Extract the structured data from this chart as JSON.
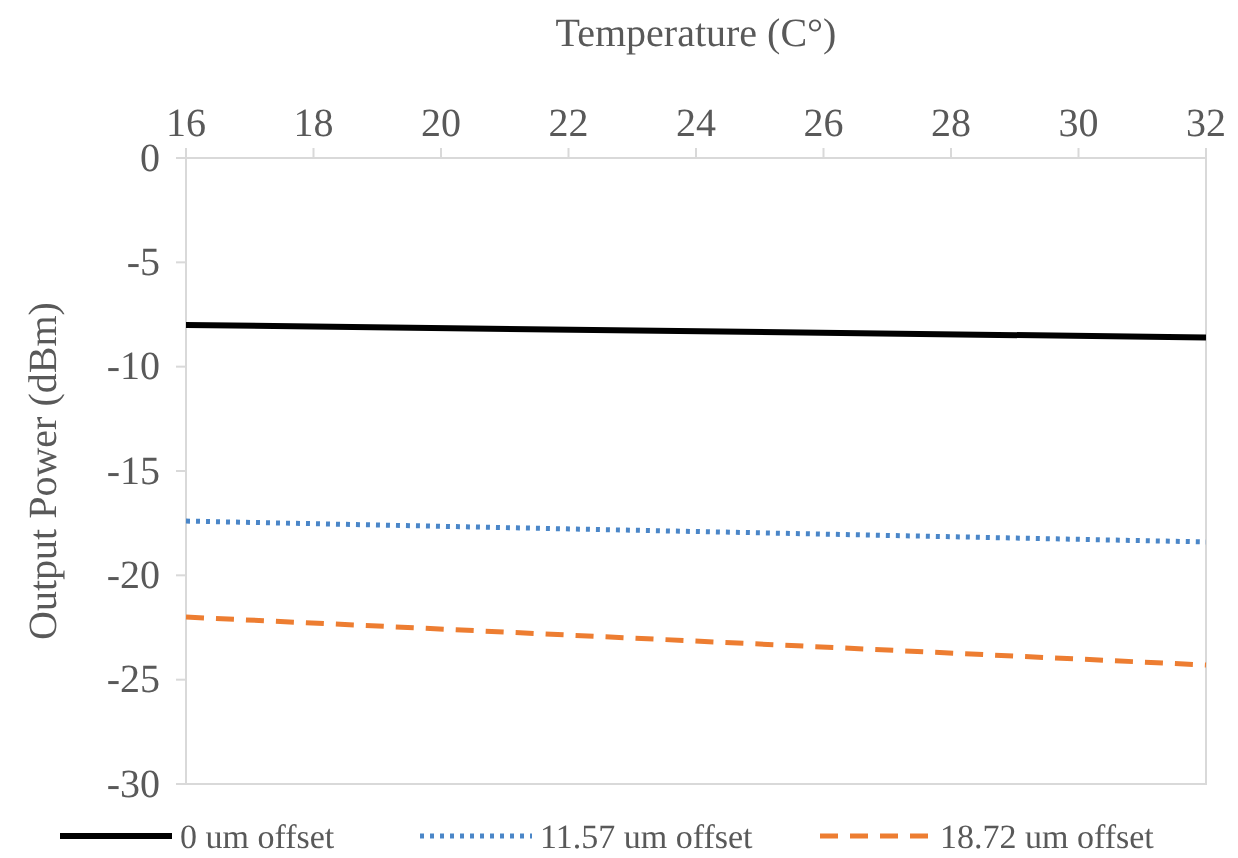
{
  "chart_data": {
    "type": "line",
    "xlabel": "Temperature (C°)",
    "ylabel": "Output Power (dBm)",
    "x": [
      16,
      32
    ],
    "series": [
      {
        "name": "0 um offset",
        "color": "#000000",
        "values": [
          -8.0,
          -8.6
        ],
        "line_style": "solid"
      },
      {
        "name": "11.57 um offset",
        "color": "#4a86c8",
        "values": [
          -17.4,
          -18.4
        ],
        "line_style": "dotted"
      },
      {
        "name": "18.72 um offset",
        "color": "#ed7d31",
        "values": [
          -22.0,
          -24.3
        ],
        "line_style": "dashed"
      }
    ],
    "xlim": [
      16,
      32
    ],
    "xticks": [
      16,
      18,
      20,
      22,
      24,
      26,
      28,
      30,
      32
    ],
    "ylim": [
      -30,
      0
    ],
    "yticks": [
      0,
      -5,
      -10,
      -15,
      -20,
      -25,
      -30
    ],
    "grid": false,
    "legend": "bottom",
    "marker": "none"
  }
}
